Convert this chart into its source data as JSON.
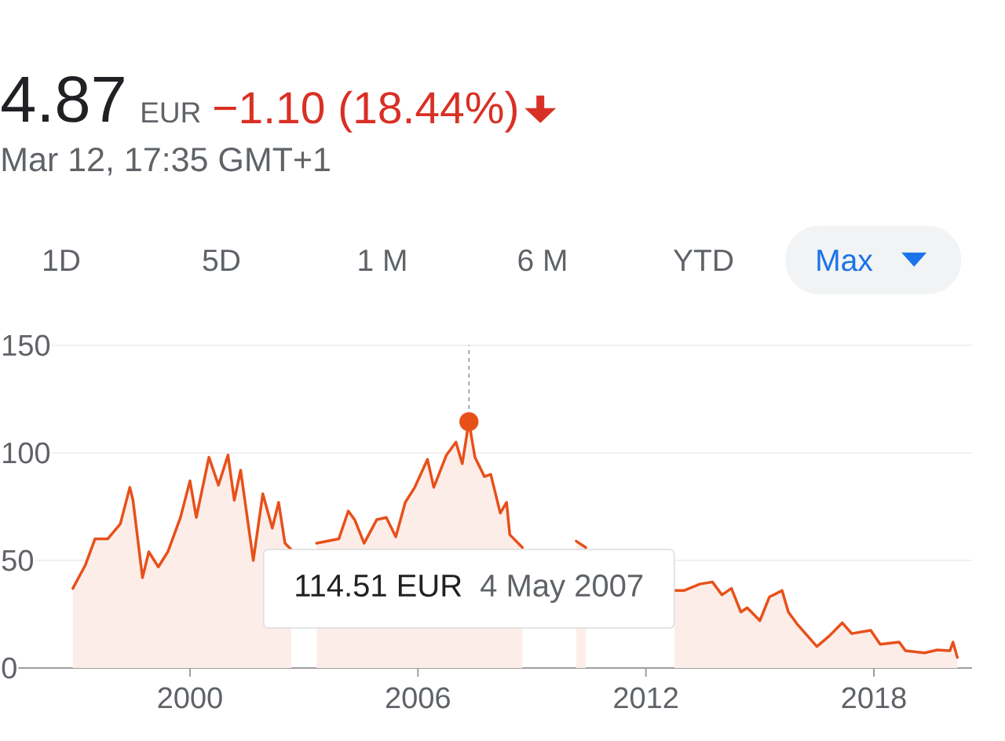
{
  "chart_data": {
    "type": "area",
    "title": "4.87",
    "subtitle": "Mar 12, 17:35 GMT+1",
    "annotations": [
      "EUR",
      "−1.10 (18.44%)",
      "1D",
      "5D",
      "1 M",
      "6 M",
      "YTD",
      "Max",
      "114.51 EUR",
      "4 May 2007"
    ],
    "xlim": [
      "1995-01",
      "2020-08"
    ],
    "xticks": [
      "2000",
      "2006",
      "2012",
      "2018"
    ],
    "ylim": [
      0,
      150
    ],
    "yticks": [
      0,
      50,
      100,
      150
    ],
    "grid": "y",
    "ref_lines": [
      {
        "axis": "x",
        "value": "2007-05-04",
        "color": "#757575",
        "line_style": "dashed"
      }
    ],
    "series": [
      {
        "color": "#e8501a",
        "x": [
          "1996-12",
          "1997-04",
          "1997-07",
          "1997-11",
          "1998-03",
          "1998-06",
          "1998-07",
          "1998-10",
          "1998-12",
          "1999-03",
          "1999-06",
          "1999-10",
          "2000-01",
          "2000-03",
          "2000-07",
          "2000-10",
          "2001-01",
          "2001-03",
          "2001-05",
          "2001-09",
          "2001-12",
          "2002-03",
          "2002-05",
          "2002-07",
          "2002-09",
          "2003-01",
          "2003-05",
          "2003-12",
          "2004-03",
          "2004-05",
          "2004-08",
          "2004-12",
          "2005-03",
          "2005-06",
          "2005-09",
          "2005-12",
          "2006-04",
          "2006-06",
          "2006-10",
          "2007-01",
          "2007-03",
          "2007-05-04",
          "2007-07",
          "2007-10",
          "2007-12",
          "2008-03",
          "2008-05",
          "2008-06",
          "2008-10",
          "2009-01",
          "2010-03",
          "2010-06",
          "2011-06",
          "2012-10",
          "2013-01",
          "2013-06",
          "2013-10",
          "2014-01",
          "2014-04",
          "2014-07",
          "2014-09",
          "2015-01",
          "2015-04",
          "2015-08",
          "2015-10",
          "2016-01",
          "2016-04",
          "2016-07",
          "2016-11",
          "2017-03",
          "2017-06",
          "2017-12",
          "2018-03",
          "2018-09",
          "2018-11",
          "2019-05",
          "2019-09",
          "2020-01",
          "2020-02",
          "2020-03-12"
        ],
        "values": [
          37,
          48,
          60,
          60,
          67,
          84,
          78,
          42,
          54,
          47,
          54,
          70,
          87,
          70,
          98,
          85,
          99,
          78,
          92,
          50,
          81,
          65,
          77,
          58,
          55,
          null,
          58,
          60,
          73,
          69,
          58,
          69,
          70,
          61,
          77,
          84,
          97,
          84,
          99,
          105,
          95,
          114.51,
          98,
          89,
          90,
          72,
          77,
          62,
          56,
          null,
          59,
          56,
          null,
          36,
          36,
          39,
          40,
          34,
          37,
          26,
          28,
          22,
          33,
          36,
          26,
          20,
          15,
          10,
          15,
          21,
          16,
          17.5,
          11,
          12,
          8,
          7,
          8.4,
          8,
          12,
          4.87
        ]
      }
    ]
  }
}
